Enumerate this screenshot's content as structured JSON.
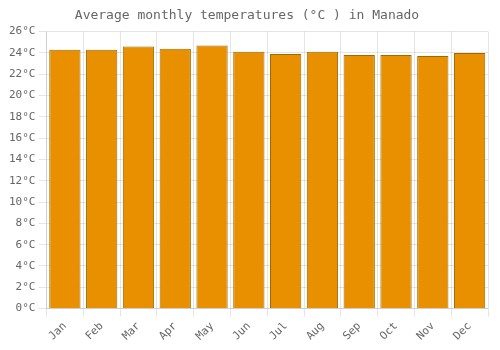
{
  "chart_data": {
    "type": "bar",
    "title": "Average monthly temperatures (°C ) in Manado",
    "categories": [
      "Jan",
      "Feb",
      "Mar",
      "Apr",
      "May",
      "Jun",
      "Jul",
      "Aug",
      "Sep",
      "Oct",
      "Nov",
      "Dec"
    ],
    "values": [
      24.3,
      24.3,
      24.6,
      24.4,
      24.7,
      24.1,
      23.9,
      24.1,
      23.8,
      23.8,
      23.7,
      24.0
    ],
    "color": "#E89000",
    "ylim": [
      0,
      26
    ],
    "yticks": [
      {
        "value": 0,
        "label": "0°C"
      },
      {
        "value": 2,
        "label": "2°C"
      },
      {
        "value": 4,
        "label": "4°C"
      },
      {
        "value": 6,
        "label": "6°C"
      },
      {
        "value": 8,
        "label": "8°C"
      },
      {
        "value": 10,
        "label": "10°C"
      },
      {
        "value": 12,
        "label": "12°C"
      },
      {
        "value": 14,
        "label": "14°C"
      },
      {
        "value": 16,
        "label": "16°C"
      },
      {
        "value": 18,
        "label": "18°C"
      },
      {
        "value": 20,
        "label": "20°C"
      },
      {
        "value": 22,
        "label": "22°C"
      },
      {
        "value": 24,
        "label": "24°C"
      },
      {
        "value": 26,
        "label": "26°C"
      }
    ],
    "grid": true
  }
}
